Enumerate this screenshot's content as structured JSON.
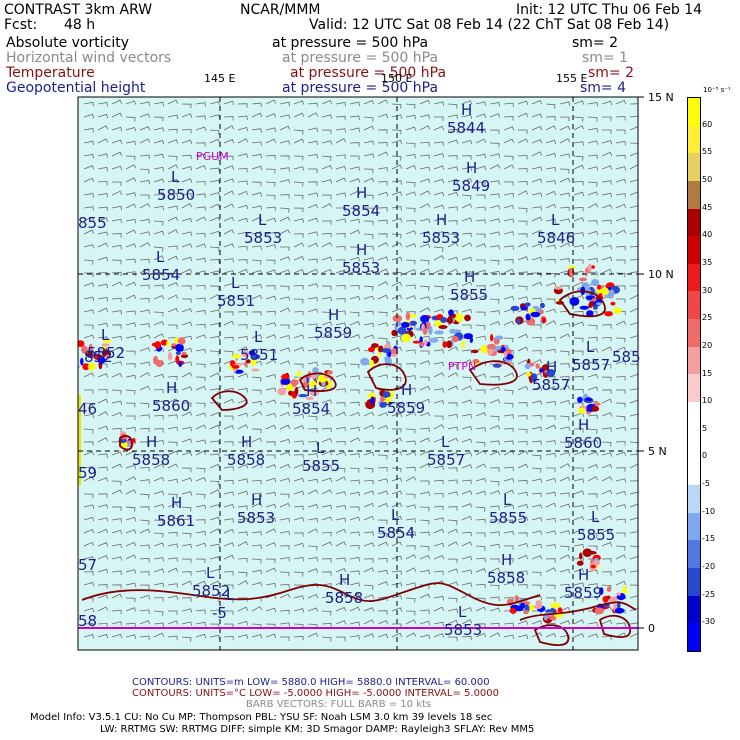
{
  "header": {
    "title": "CONTRAST  3km ARW",
    "fcst_label": "Fcst:",
    "fcst_value": "48 h",
    "org": "NCAR/MMM",
    "init": "Init: 12 UTC Thu 06 Feb 14",
    "valid": "Valid: 12 UTC Sat 08 Feb 14 (22 ChT Sat 08 Feb 14)"
  },
  "fields": [
    {
      "name": "Absolute vorticity",
      "pressure": "at pressure =  500 hPa",
      "sm": "sm= 2",
      "color": "#000000"
    },
    {
      "name": "Horizontal wind vectors",
      "pressure": "at pressure =  500 hPa",
      "sm": "sm= 1",
      "color": "#8a8a8a"
    },
    {
      "name": "Temperature",
      "pressure": "at pressure =  500 hPa",
      "sm": "sm= 2",
      "color": "#8a1010"
    },
    {
      "name": "Geopotential height",
      "pressure": "at pressure =  500 hPa",
      "sm": "sm= 4",
      "color": "#1a1f8c"
    }
  ],
  "axes": {
    "top_lons": [
      "145 E",
      "150 E",
      "155 E"
    ],
    "right_lats": [
      "15 N",
      "10 N",
      "5 N",
      "0"
    ]
  },
  "places": [
    "PGUM",
    "PTPN"
  ],
  "height_labels": [
    {
      "type": "H",
      "value": "5844"
    },
    {
      "type": "H",
      "value": "5849"
    },
    {
      "type": "L",
      "value": "5850"
    },
    {
      "type": "H",
      "value": "5854"
    },
    {
      "type": "L",
      "value": "5853"
    },
    {
      "type": "H",
      "value": "5853"
    },
    {
      "type": "L",
      "value": "5846"
    },
    {
      "type": "L",
      "value": "5854"
    },
    {
      "type": "H",
      "value": "5853"
    },
    {
      "type": "H",
      "value": "5855"
    },
    {
      "type": "L",
      "value": "5851"
    },
    {
      "type": "H",
      "value": "5859"
    },
    {
      "type": "L",
      "value": "5852"
    },
    {
      "type": "L",
      "value": "5851"
    },
    {
      "type": "L",
      "value": "5857"
    },
    {
      "type": "H",
      "value": "5860"
    },
    {
      "type": "H",
      "value": "5854"
    },
    {
      "type": "H",
      "value": "5859"
    },
    {
      "type": "H",
      "value": "5857"
    },
    {
      "type": "H",
      "value": "5860"
    },
    {
      "type": "H",
      "value": "5858"
    },
    {
      "type": "H",
      "value": "5858"
    },
    {
      "type": "L",
      "value": "5855"
    },
    {
      "type": "L",
      "value": "5857"
    },
    {
      "type": "H",
      "value": "5861"
    },
    {
      "type": "H",
      "value": "5853"
    },
    {
      "type": "L",
      "value": "5854"
    },
    {
      "type": "L",
      "value": "5855"
    },
    {
      "type": "L",
      "value": "5855"
    },
    {
      "type": "H",
      "value": "5858"
    },
    {
      "type": "L",
      "value": "5852"
    },
    {
      "type": "H",
      "value": "5858"
    },
    {
      "type": "H",
      "value": "5859"
    },
    {
      "type": "L",
      "value": "5853"
    },
    {
      "type": "L",
      "value": "-5"
    }
  ],
  "edge_labels": [
    "855",
    "852",
    "46",
    "59",
    "57",
    "58",
    "855",
    "5857",
    "585"
  ],
  "colorbar": {
    "unit": "10⁻⁵ s⁻¹",
    "labels": [
      "60",
      "55",
      "50",
      "45",
      "40",
      "35",
      "30",
      "25",
      "20",
      "15",
      "10",
      "5",
      "0",
      "-5",
      "-10",
      "-15",
      "-20",
      "-25",
      "-30"
    ],
    "colors": [
      "#ffff00",
      "#ffee33",
      "#e8d060",
      "#b07a40",
      "#aa0000",
      "#cc0000",
      "#ee1a1a",
      "#f04848",
      "#f06a6a",
      "#f4a0a0",
      "#f8cccc",
      "#ffffff",
      "#ffffff",
      "#ffffff",
      "#b8d8f8",
      "#80a8ee",
      "#5078e0",
      "#2848d0",
      "#0000cc",
      "#0000ff"
    ]
  },
  "footer": {
    "line1": "CONTOURS:  UNITS=m   LOW=   5880.0        HIGH=   5880.0        INTERVAL=    60.000",
    "line2": "CONTOURS:  UNITS=°C   LOW= -5.0000        HIGH= -5.0000        INTERVAL=    5.0000",
    "line3": "BARB VECTORS:  FULL BARB = 10 kts",
    "model1": "Model Info: V3.5.1     CU: No Cu       MP: Thompson       PBL: YSU       SF: Noah LSM      3.0 km   39 levels    18 sec",
    "model2": "LW: RRTMG    SW: RRTMG   DIFF: simple KM: 3D Smagor DAMP: Rayleigh3   SFLAY: Rev MM5"
  },
  "colors": {
    "map_bg": "#d6f5f5",
    "height_text": "#1a1f8c",
    "temp_contour": "#800000",
    "equator": "#cc00cc",
    "grid": "#000000"
  }
}
